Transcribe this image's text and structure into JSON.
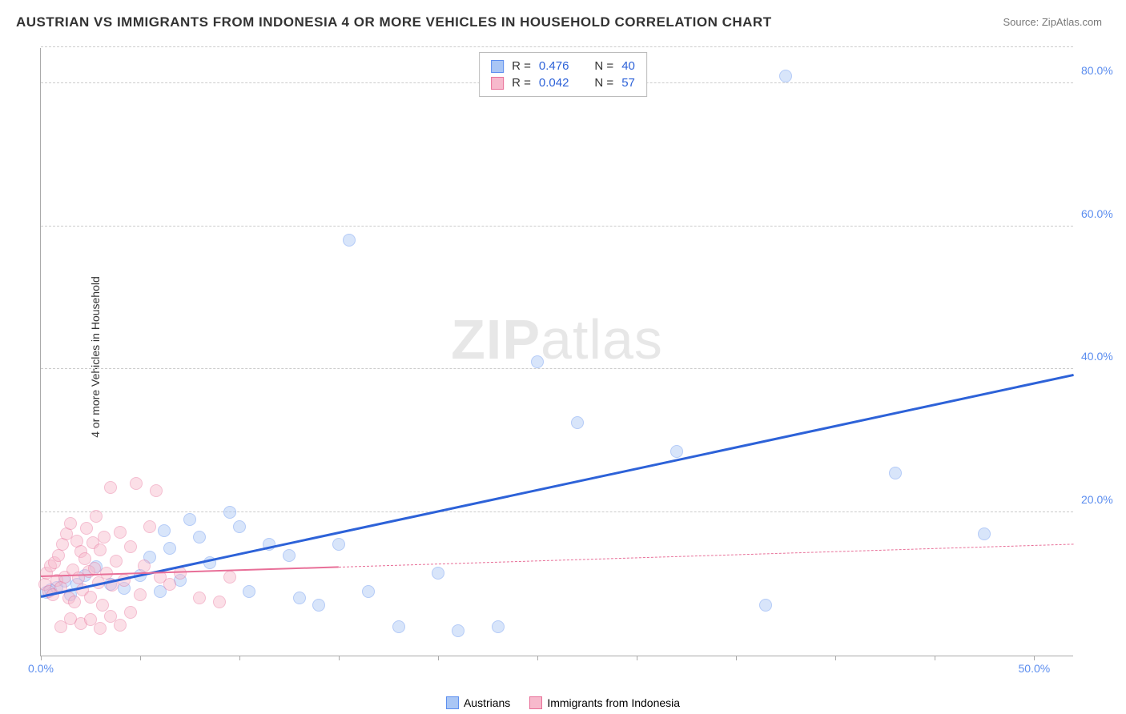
{
  "title": "AUSTRIAN VS IMMIGRANTS FROM INDONESIA 4 OR MORE VEHICLES IN HOUSEHOLD CORRELATION CHART",
  "source": "Source: ZipAtlas.com",
  "ylabel": "4 or more Vehicles in Household",
  "watermark_bold": "ZIP",
  "watermark_rest": "atlas",
  "chart": {
    "type": "scatter",
    "xlim": [
      0,
      52
    ],
    "ylim": [
      0,
      85
    ],
    "x_ticks": [
      0,
      5,
      10,
      15,
      20,
      25,
      30,
      35,
      40,
      45,
      50
    ],
    "x_tick_labels": {
      "0": "0.0%",
      "50": "50.0%"
    },
    "y_ticks": [
      20,
      40,
      60,
      80
    ],
    "y_tick_labels": {
      "20": "20.0%",
      "40": "40.0%",
      "60": "60.0%",
      "80": "80.0%"
    },
    "y_tick_color": "#5b8def",
    "x_tick_color": "#5b8def",
    "background_color": "#ffffff",
    "grid_color": "#cccccc",
    "marker_radius": 8,
    "marker_opacity": 0.45,
    "series": [
      {
        "name": "Austrians",
        "fill_color": "#a9c6f5",
        "stroke_color": "#5b8def",
        "R": "0.476",
        "N": "40",
        "trend": {
          "x1": 0,
          "y1": 8,
          "x2": 52,
          "y2": 39,
          "color": "#2d62d8",
          "width": 3,
          "dash_after_x": null
        },
        "points": [
          [
            0.3,
            8.8
          ],
          [
            0.5,
            9.2
          ],
          [
            0.8,
            9.5
          ],
          [
            1.2,
            10.4
          ],
          [
            1.5,
            8.5
          ],
          [
            1.8,
            10.0
          ],
          [
            2.2,
            11.2
          ],
          [
            2.8,
            12.4
          ],
          [
            3.5,
            10.0
          ],
          [
            4.2,
            9.4
          ],
          [
            5.0,
            11.2
          ],
          [
            5.5,
            13.8
          ],
          [
            6.0,
            9.0
          ],
          [
            6.5,
            15.0
          ],
          [
            7.0,
            10.5
          ],
          [
            7.5,
            19.0
          ],
          [
            8.0,
            16.5
          ],
          [
            8.5,
            13.0
          ],
          [
            9.5,
            20.0
          ],
          [
            10.0,
            18.0
          ],
          [
            10.5,
            9.0
          ],
          [
            11.5,
            15.5
          ],
          [
            12.5,
            14.0
          ],
          [
            13.0,
            8.0
          ],
          [
            14.0,
            7.0
          ],
          [
            15.0,
            15.5
          ],
          [
            16.5,
            9.0
          ],
          [
            15.5,
            58.0
          ],
          [
            18.0,
            4.0
          ],
          [
            20.0,
            11.5
          ],
          [
            21.0,
            3.5
          ],
          [
            23.0,
            4.0
          ],
          [
            25.0,
            41.0
          ],
          [
            27.0,
            32.5
          ],
          [
            32.0,
            28.5
          ],
          [
            37.5,
            81.0
          ],
          [
            43.0,
            25.5
          ],
          [
            47.5,
            17.0
          ],
          [
            36.5,
            7.0
          ],
          [
            6.2,
            17.5
          ]
        ]
      },
      {
        "name": "Immigrants from Indonesia",
        "fill_color": "#f7b9cc",
        "stroke_color": "#e86f98",
        "R": "0.042",
        "N": "57",
        "trend": {
          "x1": 0,
          "y1": 11,
          "x2": 52,
          "y2": 15.5,
          "color": "#e86f98",
          "width": 2,
          "dash_after_x": 15
        },
        "points": [
          [
            0.2,
            10.0
          ],
          [
            0.3,
            11.5
          ],
          [
            0.4,
            9.0
          ],
          [
            0.5,
            12.5
          ],
          [
            0.6,
            8.5
          ],
          [
            0.7,
            13.0
          ],
          [
            0.8,
            10.5
          ],
          [
            0.9,
            14.0
          ],
          [
            1.0,
            9.5
          ],
          [
            1.1,
            15.5
          ],
          [
            1.2,
            11.0
          ],
          [
            1.3,
            17.0
          ],
          [
            1.4,
            8.0
          ],
          [
            1.5,
            18.5
          ],
          [
            1.6,
            12.0
          ],
          [
            1.7,
            7.5
          ],
          [
            1.8,
            16.0
          ],
          [
            1.9,
            10.8
          ],
          [
            2.0,
            14.5
          ],
          [
            2.1,
            9.2
          ],
          [
            2.2,
            13.5
          ],
          [
            2.3,
            17.8
          ],
          [
            2.4,
            11.8
          ],
          [
            2.5,
            8.2
          ],
          [
            2.6,
            15.8
          ],
          [
            2.7,
            12.2
          ],
          [
            2.8,
            19.5
          ],
          [
            2.9,
            10.2
          ],
          [
            3.0,
            14.8
          ],
          [
            3.1,
            7.0
          ],
          [
            3.2,
            16.5
          ],
          [
            3.3,
            11.5
          ],
          [
            3.5,
            23.5
          ],
          [
            3.6,
            9.8
          ],
          [
            3.8,
            13.2
          ],
          [
            4.0,
            17.2
          ],
          [
            4.2,
            10.5
          ],
          [
            4.5,
            15.2
          ],
          [
            4.8,
            24.0
          ],
          [
            5.0,
            8.5
          ],
          [
            5.2,
            12.5
          ],
          [
            5.5,
            18.0
          ],
          [
            5.8,
            23.0
          ],
          [
            6.0,
            11.0
          ],
          [
            2.0,
            4.5
          ],
          [
            2.5,
            5.0
          ],
          [
            3.0,
            3.8
          ],
          [
            3.5,
            5.5
          ],
          [
            4.0,
            4.2
          ],
          [
            4.5,
            6.0
          ],
          [
            1.0,
            4.0
          ],
          [
            1.5,
            5.2
          ],
          [
            6.5,
            10.0
          ],
          [
            7.0,
            11.5
          ],
          [
            8.0,
            8.0
          ],
          [
            9.0,
            7.5
          ],
          [
            9.5,
            11.0
          ]
        ]
      }
    ]
  },
  "stats_labels": {
    "R": "R  =",
    "N": "N  ="
  },
  "legend": {
    "items": [
      {
        "label": "Austrians",
        "fill": "#a9c6f5",
        "stroke": "#5b8def"
      },
      {
        "label": "Immigrants from Indonesia",
        "fill": "#f7b9cc",
        "stroke": "#e86f98"
      }
    ]
  }
}
